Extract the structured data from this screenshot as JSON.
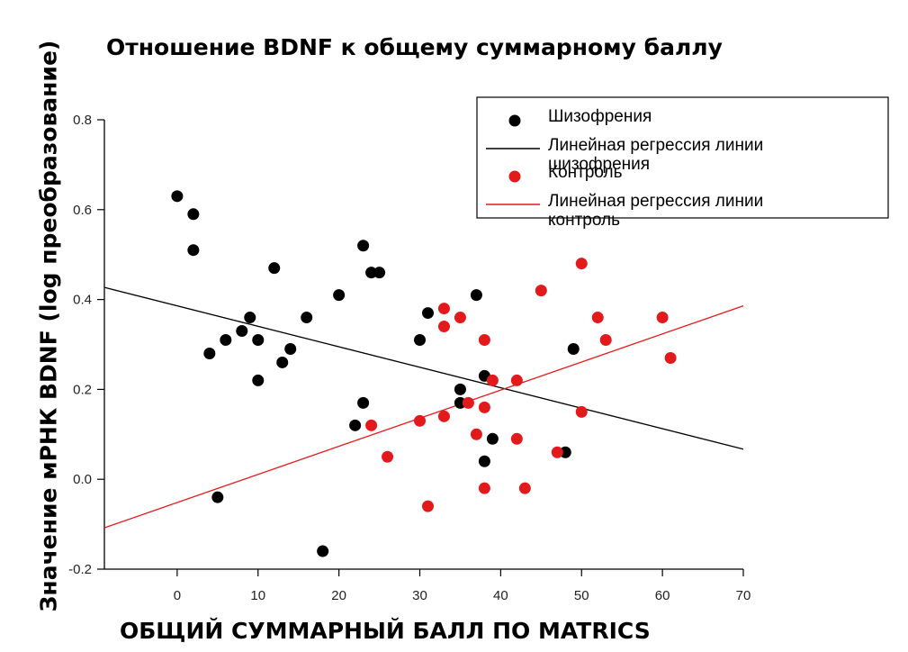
{
  "chart_data": {
    "type": "scatter",
    "title": "Отношение BDNF к общему суммарному баллу",
    "xlabel": "ОБЩИЙ СУММАРНЫЙ БАЛЛ ПО MATRICS",
    "ylabel": "Значение мРНК BDNF (log преобразование)",
    "xlim": [
      -9,
      70
    ],
    "ylim": [
      -0.2,
      0.8
    ],
    "xticks": [
      0,
      10,
      20,
      30,
      40,
      50,
      60,
      70
    ],
    "yticks": [
      -0.2,
      0.0,
      0.2,
      0.4,
      0.6,
      0.8
    ],
    "xtick_labels": [
      "0",
      "10",
      "20",
      "30",
      "40",
      "50",
      "60",
      "70"
    ],
    "ytick_labels": [
      "-0.2",
      "0.0",
      "0.2",
      "0.4",
      "0.6",
      "0.8"
    ],
    "grid": false,
    "legend_position": "top-right",
    "series": [
      {
        "name": "Шизофрения",
        "kind": "points",
        "color": "#000000",
        "x": [
          0,
          2,
          2,
          4,
          5,
          6,
          8,
          9,
          10,
          10,
          12,
          13,
          14,
          16,
          18,
          20,
          22,
          23,
          23,
          24,
          25,
          30,
          31,
          35,
          35,
          37,
          38,
          38,
          39,
          48,
          49
        ],
        "y": [
          0.63,
          0.59,
          0.51,
          0.28,
          -0.04,
          0.31,
          0.33,
          0.36,
          0.31,
          0.22,
          0.47,
          0.26,
          0.29,
          0.36,
          -0.16,
          0.41,
          0.12,
          0.52,
          0.17,
          0.46,
          0.46,
          0.31,
          0.37,
          0.2,
          0.17,
          0.41,
          0.23,
          0.04,
          0.09,
          0.06,
          0.29
        ]
      },
      {
        "name": "Линейная регрессия линии шизофрения",
        "kind": "line",
        "color": "#000000",
        "x": [
          -9,
          70
        ],
        "y": [
          0.427,
          0.067
        ]
      },
      {
        "name": "Контроль",
        "kind": "points",
        "color": "#e31a1c",
        "x": [
          24,
          26,
          30,
          31,
          33,
          33,
          33,
          35,
          36,
          37,
          38,
          38,
          38,
          39,
          42,
          42,
          43,
          45,
          47,
          50,
          50,
          52,
          53,
          60,
          61
        ],
        "y": [
          0.12,
          0.05,
          0.13,
          -0.06,
          0.38,
          0.34,
          0.14,
          0.36,
          0.17,
          0.1,
          0.31,
          0.16,
          -0.02,
          0.22,
          0.22,
          0.09,
          -0.02,
          0.42,
          0.06,
          0.48,
          0.15,
          0.36,
          0.31,
          0.36,
          0.27
        ]
      },
      {
        "name": "Линейная регрессия линии контроль",
        "kind": "line",
        "color": "#e31a1c",
        "x": [
          -9,
          70
        ],
        "y": [
          -0.108,
          0.386
        ]
      }
    ],
    "legend": [
      {
        "label_lines": [
          "Шизофрения"
        ],
        "marker": "point",
        "color": "#000000"
      },
      {
        "label_lines": [
          "Линейная регрессия линии",
          "шизофрения"
        ],
        "marker": "line",
        "color": "#000000"
      },
      {
        "label_lines": [
          "Контроль"
        ],
        "marker": "point",
        "color": "#e31a1c"
      },
      {
        "label_lines": [
          "Линейная регрессия линии",
          "контроль"
        ],
        "marker": "line",
        "color": "#e31a1c"
      }
    ]
  }
}
